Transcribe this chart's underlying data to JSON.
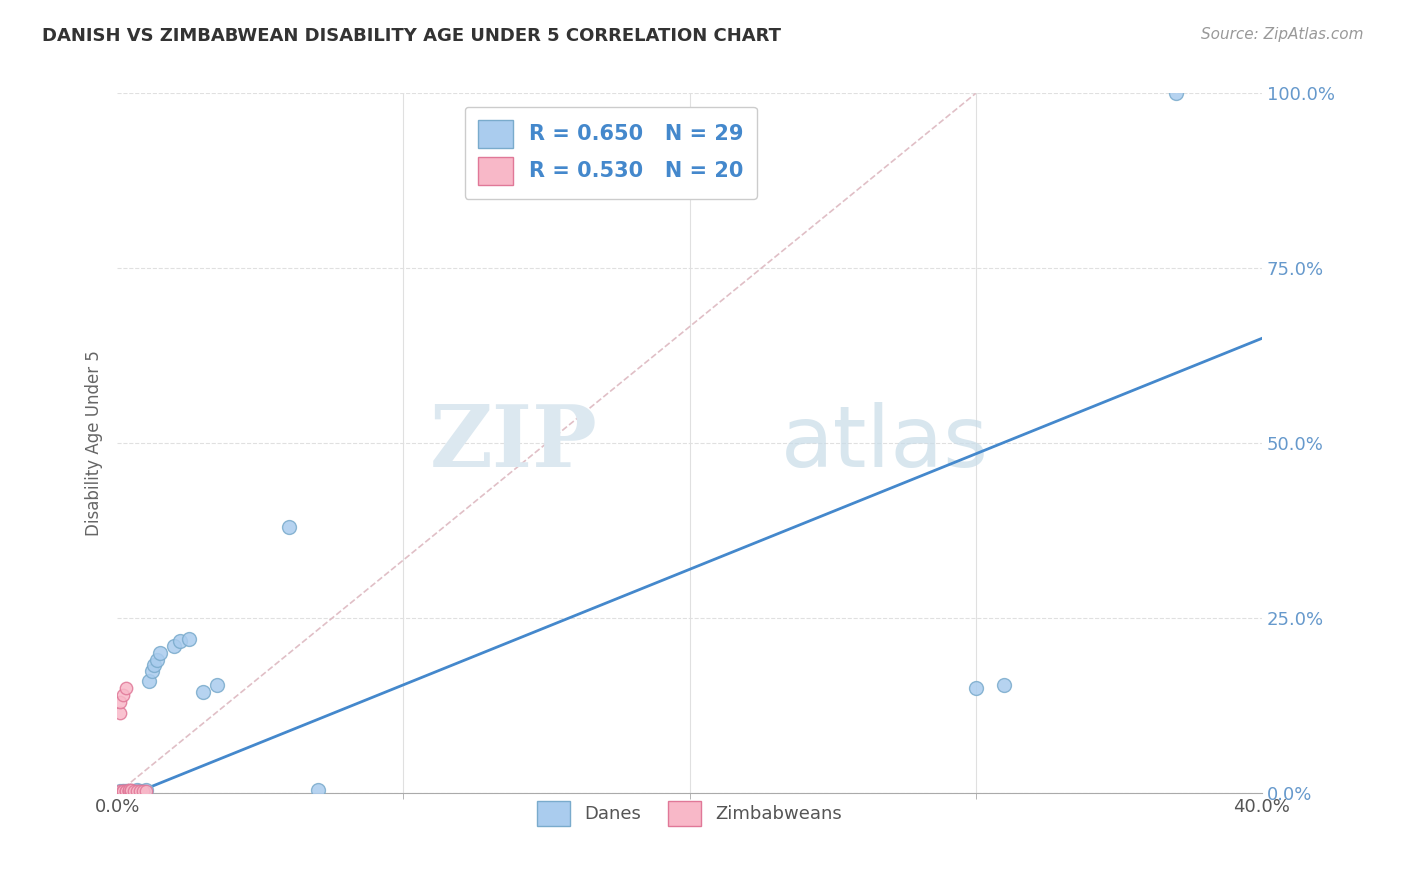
{
  "title": "DANISH VS ZIMBABWEAN DISABILITY AGE UNDER 5 CORRELATION CHART",
  "source": "Source: ZipAtlas.com",
  "ylabel": "Disability Age Under 5",
  "xlim": [
    0.0,
    0.4
  ],
  "ylim": [
    0.0,
    1.0
  ],
  "xtick_vals": [
    0.0,
    0.4
  ],
  "xtick_labels": [
    "0.0%",
    "40.0%"
  ],
  "ytick_vals": [
    0.0,
    0.25,
    0.5,
    0.75,
    1.0
  ],
  "ytick_labels": [
    "0.0%",
    "25.0%",
    "50.0%",
    "75.0%",
    "100.0%"
  ],
  "danes_color": "#aaccee",
  "danes_edge_color": "#7aabcc",
  "zimb_color": "#f8b8c8",
  "zimb_edge_color": "#e07898",
  "reg_line_danes_color": "#4488cc",
  "diag_line_color": "#ddb8c0",
  "legend_R_danes": "R = 0.650",
  "legend_N_danes": "N = 29",
  "legend_R_zimb": "R = 0.530",
  "legend_N_zimb": "N = 20",
  "danes_x": [
    0.001,
    0.002,
    0.002,
    0.003,
    0.003,
    0.004,
    0.005,
    0.005,
    0.006,
    0.007,
    0.007,
    0.008,
    0.009,
    0.01,
    0.011,
    0.012,
    0.013,
    0.014,
    0.015,
    0.02,
    0.022,
    0.025,
    0.03,
    0.035,
    0.06,
    0.07,
    0.3,
    0.31,
    0.37
  ],
  "danes_y": [
    0.003,
    0.003,
    0.004,
    0.003,
    0.004,
    0.003,
    0.003,
    0.004,
    0.004,
    0.004,
    0.005,
    0.004,
    0.004,
    0.005,
    0.16,
    0.175,
    0.183,
    0.19,
    0.2,
    0.21,
    0.218,
    0.22,
    0.145,
    0.155,
    0.38,
    0.005,
    0.15,
    0.155,
    1.0
  ],
  "zimb_x": [
    0.001,
    0.001,
    0.001,
    0.002,
    0.002,
    0.002,
    0.003,
    0.003,
    0.003,
    0.004,
    0.004,
    0.004,
    0.005,
    0.005,
    0.005,
    0.006,
    0.007,
    0.008,
    0.009,
    0.01
  ],
  "zimb_y": [
    0.003,
    0.115,
    0.13,
    0.003,
    0.004,
    0.14,
    0.003,
    0.004,
    0.15,
    0.003,
    0.004,
    0.005,
    0.003,
    0.004,
    0.005,
    0.004,
    0.004,
    0.004,
    0.003,
    0.003
  ],
  "watermark_zip": "ZIP",
  "watermark_atlas": "atlas",
  "background_color": "#ffffff",
  "grid_color": "#e0e0e0",
  "ytick_color": "#6699cc",
  "xtick_color": "#555555"
}
